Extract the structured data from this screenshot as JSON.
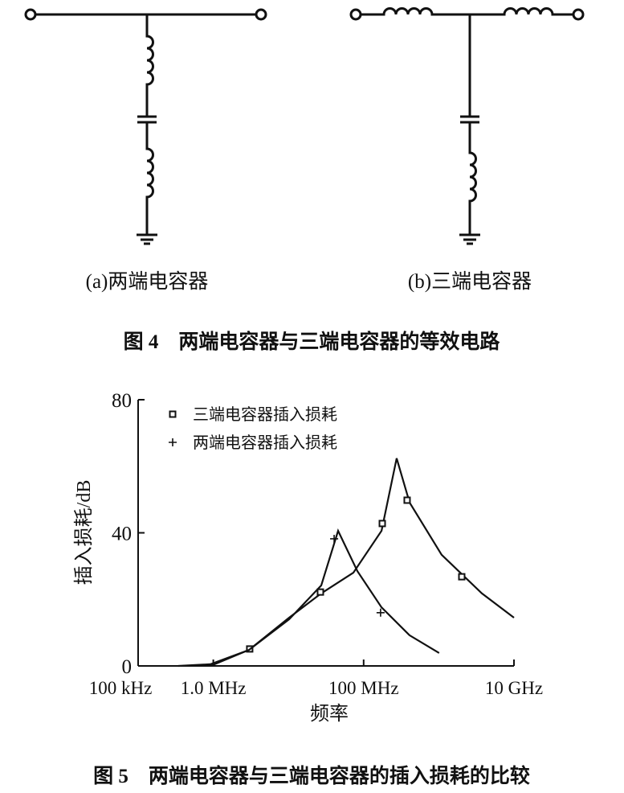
{
  "figure4": {
    "labels": [
      "(a)两端电容器",
      "(b)三端电容器"
    ],
    "caption": "图 4　两端电容器与三端电容器的等效电路"
  },
  "chart_data": {
    "type": "line",
    "xlabel": "频率",
    "ylabel": "插入损耗/dB",
    "xscale": "log",
    "xlim": [
      100000,
      10000000000
    ],
    "xticks": [
      {
        "value": 100000,
        "label": "100 kHz"
      },
      {
        "value": 1000000,
        "label": "1.0 MHz"
      },
      {
        "value": 100000000,
        "label": "100 MHz"
      },
      {
        "value": 10000000000,
        "label": "10 GHz"
      }
    ],
    "ylim": [
      0,
      80
    ],
    "yticks": [
      0,
      40,
      80
    ],
    "grid": false,
    "legend": "upper left",
    "series": [
      {
        "name": "三端电容器插入损耗",
        "color": "#111111",
        "marker": "square",
        "x": [
          920000,
          2980000,
          10200000,
          27300000,
          72900000,
          173000000,
          275000000,
          408000000,
          1090000000,
          3740000000,
          10000000000
        ],
        "values": [
          0,
          4.8,
          14.5,
          21.8,
          28.0,
          40.6,
          62.4,
          49.1,
          33.4,
          21.8,
          14.5
        ],
        "marker_x": [
          3050000,
          26600000,
          177000000,
          379000000,
          2020000000
        ],
        "marker_values": [
          5.1,
          22.2,
          42.8,
          49.8,
          26.8
        ]
      },
      {
        "name": "两端电容器插入损耗",
        "color": "#111111",
        "marker": "plus",
        "x": [
          342000,
          916000,
          2980000,
          10200000,
          27300000,
          45700000,
          82600000,
          173000000,
          408000000,
          1010000000
        ],
        "values": [
          0,
          0.5,
          4.8,
          14.0,
          24.2,
          40.6,
          28.5,
          17.6,
          9.2,
          3.9
        ],
        "marker_x": [
          40500000,
          168000000
        ],
        "marker_values": [
          38.2,
          16.0
        ]
      }
    ]
  },
  "figure5": {
    "caption": "图 5　两端电容器与三端电容器的插入损耗的比较"
  }
}
